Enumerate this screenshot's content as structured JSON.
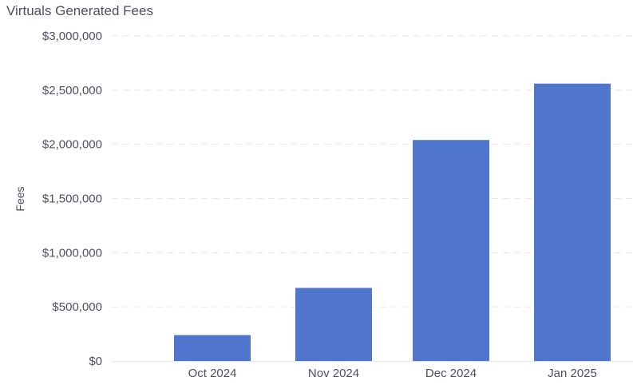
{
  "chart_data": {
    "type": "bar",
    "title": "Virtuals Generated Fees",
    "xlabel": "",
    "ylabel": "Fees",
    "categories": [
      "Oct 2024",
      "Nov 2024",
      "Dec 2024",
      "Jan 2025"
    ],
    "values": [
      240000,
      675000,
      2040000,
      2560000
    ],
    "ylim": [
      0,
      3000000
    ],
    "yticks": [
      0,
      500000,
      1000000,
      1500000,
      2000000,
      2500000,
      3000000
    ],
    "ytick_labels": [
      "$0",
      "$500,000",
      "$1,000,000",
      "$1,500,000",
      "$2,000,000",
      "$2,500,000",
      "$3,000,000"
    ],
    "grid": true,
    "legend": "none",
    "colors": {
      "bar": "#5176cd",
      "grid": "#e4e6ec",
      "text": "#4a5064",
      "axis": "#e2e4ea"
    }
  }
}
